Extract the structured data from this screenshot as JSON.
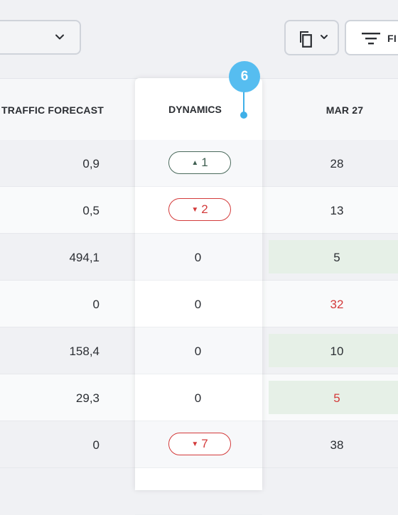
{
  "toolbar": {
    "select_value": "",
    "filter_label": "FI"
  },
  "columns": {
    "traffic": "TRAFFIC FORECAST",
    "dynamics": "DYNAMICS",
    "mar": "MAR 27"
  },
  "marker": {
    "label": "6"
  },
  "rows": [
    {
      "traffic": "0,9",
      "dynamics": "1",
      "dyn_type": "up",
      "mar": "28",
      "mar_style": "plain"
    },
    {
      "traffic": "0,5",
      "dynamics": "2",
      "dyn_type": "down",
      "mar": "13",
      "mar_style": "plain"
    },
    {
      "traffic": "494,1",
      "dynamics": "0",
      "dyn_type": "zero",
      "mar": "5",
      "mar_style": "green"
    },
    {
      "traffic": "0",
      "dynamics": "0",
      "dyn_type": "zero",
      "mar": "32",
      "mar_style": "red"
    },
    {
      "traffic": "158,4",
      "dynamics": "0",
      "dyn_type": "zero",
      "mar": "10",
      "mar_style": "green"
    },
    {
      "traffic": "29,3",
      "dynamics": "0",
      "dyn_type": "zero",
      "mar": "5",
      "mar_style": "green-red"
    },
    {
      "traffic": "0",
      "dynamics": "7",
      "dyn_type": "down",
      "mar": "38",
      "mar_style": "plain"
    }
  ],
  "icons": {
    "select_chevron": "chevron-down-icon",
    "copy": "copy-icon",
    "filter": "filter-icon"
  }
}
